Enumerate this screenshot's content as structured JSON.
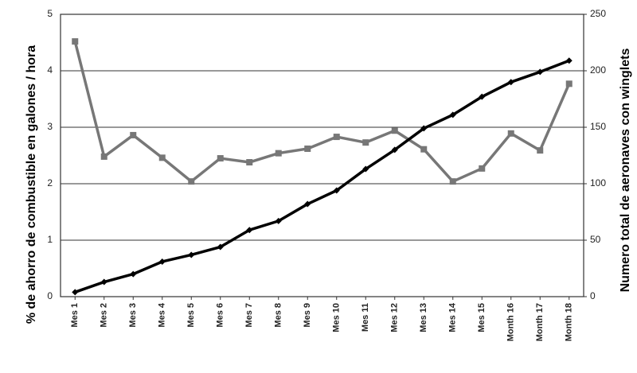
{
  "chart_data": {
    "type": "line",
    "y_label": "% de ahorro de combustible en galones / hora",
    "y2_label": "Numero total de aeronaves con winglets",
    "categories": [
      "Mes 1",
      "Mes 2",
      "Mes 3",
      "Mes 4",
      "Mes 5",
      "Mes 6",
      "Mes 7",
      "Mes 8",
      "Mes 9",
      "Mes 10",
      "Mes 11",
      "Mes 12",
      "Mes 13",
      "Mes 14",
      "Mes 15",
      "Month 16",
      "Month 17",
      "Month 18"
    ],
    "series": [
      {
        "color": "#777777",
        "marker": "square",
        "values": [
          4.52,
          2.48,
          2.86,
          2.46,
          2.04,
          2.45,
          2.38,
          2.54,
          2.62,
          2.83,
          2.73,
          2.94,
          2.61,
          2.04,
          2.27,
          2.89,
          2.59,
          3.77
        ]
      },
      {
        "color": "#000000",
        "marker": "diamond",
        "axis": "y2",
        "values": [
          4,
          13,
          20,
          31,
          37,
          44,
          59,
          67,
          82,
          94,
          113,
          130,
          149,
          161,
          177,
          190,
          199,
          209
        ]
      }
    ],
    "ylim": [
      0,
      5
    ],
    "yticks": [
      0,
      1,
      2,
      3,
      4,
      5
    ],
    "y2lim": [
      0,
      250
    ],
    "y2ticks": [
      0,
      50,
      100,
      150,
      200,
      250
    ],
    "grid": true
  }
}
